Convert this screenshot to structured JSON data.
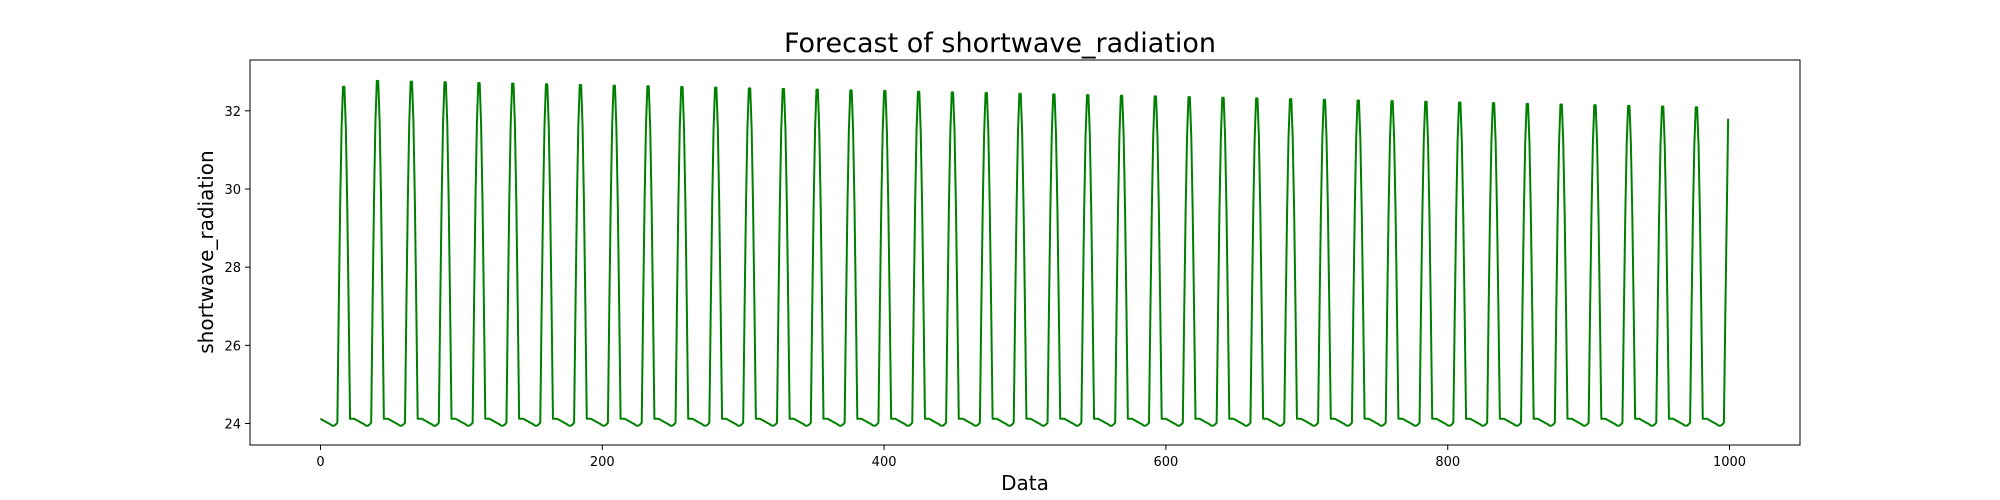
{
  "chart_data": {
    "type": "line",
    "title": "Forecast of shortwave_radiation",
    "xlabel": "Data",
    "ylabel": "shortwave_radiation",
    "xlim": [
      -50,
      1050
    ],
    "ylim": [
      23.45,
      33.3
    ],
    "xticks": [
      0,
      200,
      400,
      600,
      800,
      1000
    ],
    "yticks": [
      24,
      26,
      28,
      30,
      32
    ],
    "grid": false,
    "legend": "none",
    "series": [
      {
        "color": "#008000",
        "period": 24,
        "x_start": 0,
        "x_end": 999,
        "baseline": 24.0,
        "first_peak_x": 14,
        "first_peak_value": 32.75,
        "early_peak_value": 32.9,
        "last_peak_value": 32.2,
        "last_value": 31.8
      }
    ]
  }
}
